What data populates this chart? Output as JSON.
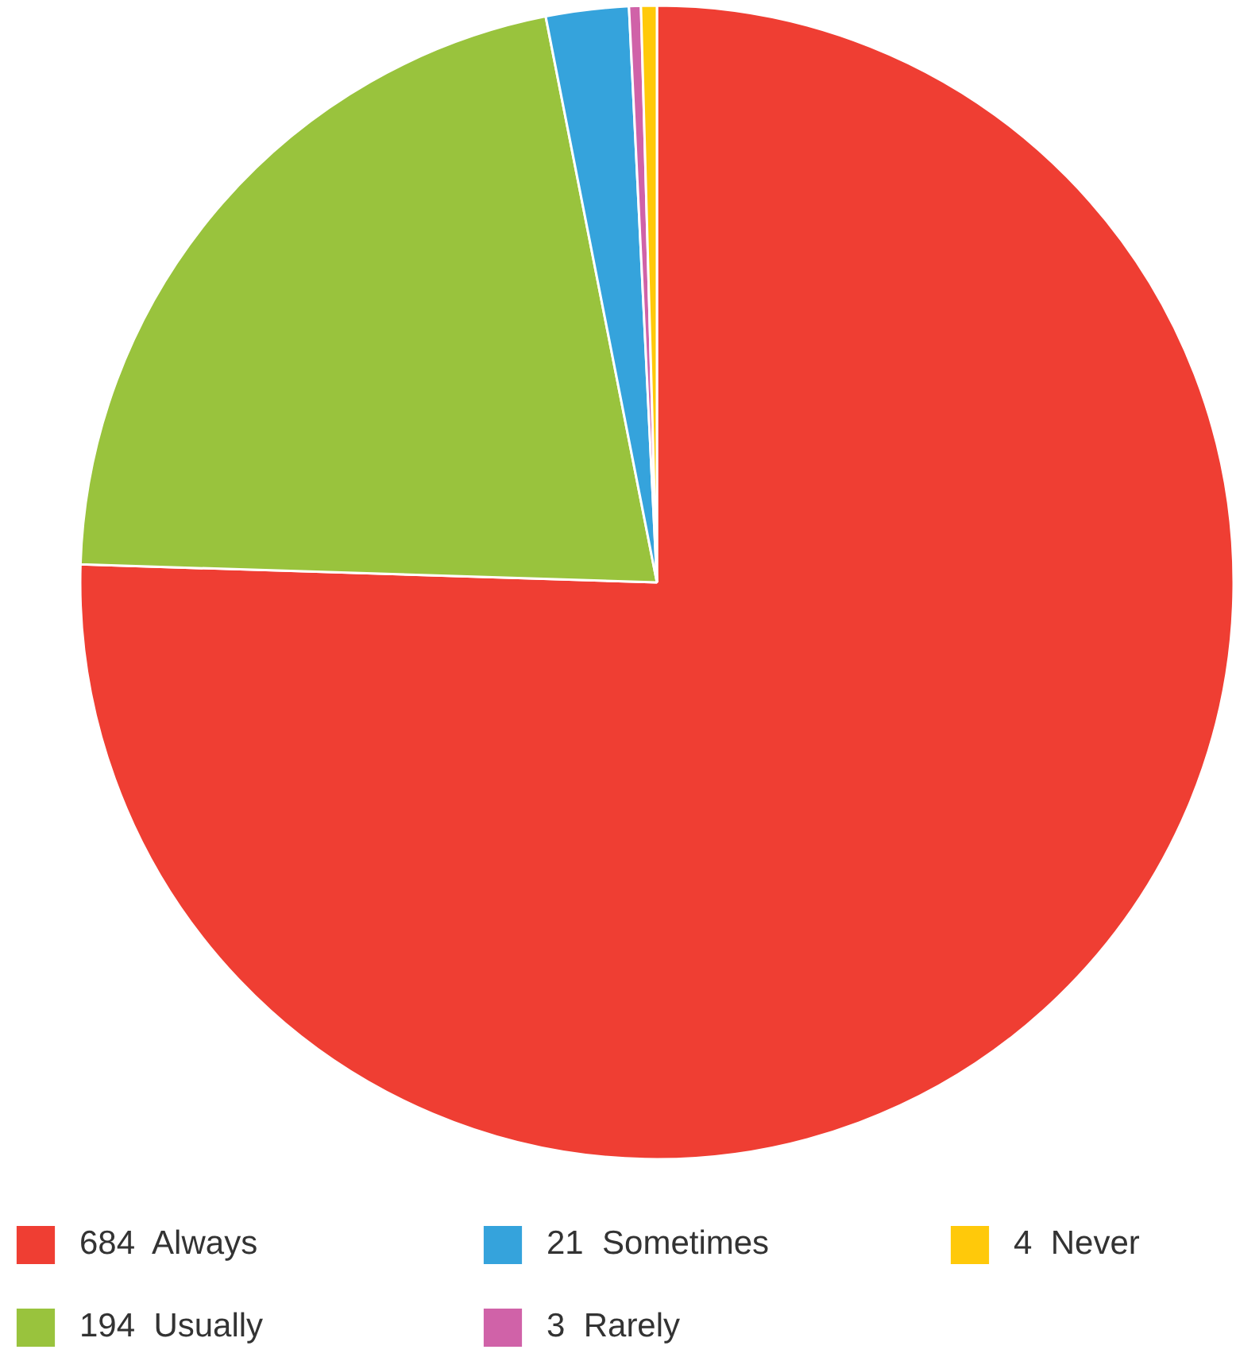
{
  "chart_data": {
    "type": "pie",
    "categories": [
      "684  Always",
      "194  Usually",
      "21  Sometimes",
      "3  Rarely",
      "4  Never"
    ],
    "values": [
      684,
      194,
      21,
      3,
      4
    ],
    "colors": [
      "#ef3e33",
      "#99c33d",
      "#35a3dc",
      "#d062a8",
      "#ffc90a"
    ],
    "legend": "bottom"
  }
}
